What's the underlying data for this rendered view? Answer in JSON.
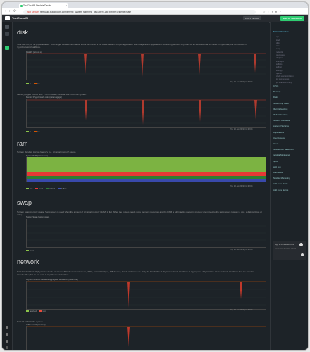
{
  "browser": {
    "tab_title": "TestCloudBI Netdata Dashb...",
    "url_prefix": "Not Secure",
    "url": "fermuskit.blackbloom.com/#menu_system_submenu_disk;after=-180;before=0;theme=slate"
  },
  "header": {
    "brand": "TestCloudBI",
    "last_visited": "Last 5 minutes",
    "sign_in": "SIGN IN TO CLOUD"
  },
  "sections": {
    "disk": {
      "title": "disk",
      "description": "Total disk I/O, for all physical disks. You can get detailed information about each disk at the Disks section and per application Disk usage at the Applications Monitoring section. Physical are all the disks that are listed in /sys/block, but do not exist in /sys/devices/virtual/block.",
      "chart1": {
        "title": "Disk I/O (system.io)",
        "stamp": "Thu, 10 Jun 2021 | 10:42:04",
        "legend": [
          "in",
          "out"
        ]
      },
      "chart2_desc": "Memory paged from/to disk. This is usually the total disk I/O of the system.",
      "chart2": {
        "title": "Memory Paged from/to disk (system.pgpgio)",
        "stamp": "Thu, 10 Jun 2021 | 10:42:04",
        "legend": [
          "in",
          "out"
        ]
      }
    },
    "ram": {
      "title": "ram",
      "description": "System Random Access Memory (i.e. physical memory) usage.",
      "chart": {
        "title": "System RAM (system.ram)",
        "stamp": "Thu, 10 Jun 2021 | 10:42:04",
        "legend": [
          "free",
          "used",
          "cached",
          "buffers"
        ]
      }
    },
    "swap": {
      "title": "swap",
      "description": "System swap memory usage. Swap space is used when the amount of physical memory (RAM) is full. When the system needs more memory resources and the RAM is full, inactive pages in memory are moved to the swap space (usually a disk, a disk partition or a file).",
      "chart": {
        "title": "System Swap (system.swap)",
        "stamp": "Thu, 10 Jun 2021 | 10:42:04",
        "legend": [
          "used"
        ]
      }
    },
    "network": {
      "title": "network",
      "description": "Total bandwidth of all physical network interfaces. This does not include lo, VPNs, network bridges, IFB devices, bond interfaces, etc. Only the bandwidth of physical network interfaces is aggregated. Physical are all the network interfaces that are listed in /proc/net/dev, but do not exist in /sys/devices/virtual/net.",
      "chart": {
        "title": "Physical Network Interfaces Aggregated Bandwidth (system.net)",
        "stamp": "Thu, 10 Jun 2021 | 10:42:04",
        "legend": [
          "received",
          "sent"
        ]
      },
      "chart2_desc": "Total IP traffic in the system.",
      "chart2": {
        "title": "IP Bandwidth (system.ip)"
      }
    }
  },
  "sidebar": {
    "items": [
      {
        "label": "System Overview",
        "level": "top",
        "active": true
      },
      {
        "label": "cpu",
        "level": "sub"
      },
      {
        "label": "load",
        "level": "sub"
      },
      {
        "label": "disk",
        "level": "sub"
      },
      {
        "label": "ram",
        "level": "sub"
      },
      {
        "label": "swap",
        "level": "sub"
      },
      {
        "label": "network",
        "level": "sub"
      },
      {
        "label": "processes",
        "level": "sub"
      },
      {
        "label": "idlejitter",
        "level": "sub"
      },
      {
        "label": "interrupts",
        "level": "sub"
      },
      {
        "label": "softirqs",
        "level": "sub"
      },
      {
        "label": "softnet",
        "level": "sub"
      },
      {
        "label": "entropy",
        "level": "sub"
      },
      {
        "label": "uptime",
        "level": "sub"
      },
      {
        "label": "clock synchronization",
        "level": "sub"
      },
      {
        "label": "ipc semaphores",
        "level": "sub"
      },
      {
        "label": "ipc shared memory",
        "level": "sub"
      },
      {
        "label": "CPUs",
        "level": "top"
      },
      {
        "label": "Memory",
        "level": "top"
      },
      {
        "label": "Disks",
        "level": "top"
      },
      {
        "label": "Networking Stack",
        "level": "top"
      },
      {
        "label": "IPv4 Networking",
        "level": "top"
      },
      {
        "label": "IPv6 Networking",
        "level": "top"
      },
      {
        "label": "Network Interfaces",
        "level": "top"
      },
      {
        "label": "systemd Services",
        "level": "top"
      },
      {
        "label": "Applications",
        "level": "top"
      },
      {
        "label": "User Groups",
        "level": "top"
      },
      {
        "label": "Users",
        "level": "top"
      },
      {
        "label": "Netdata API Bandwidth",
        "level": "top"
      },
      {
        "label": "netdata Monitoring",
        "level": "top"
      },
      {
        "label": "nginx",
        "level": "top"
      },
      {
        "label": "web_log",
        "level": "top"
      },
      {
        "label": "Anomalies",
        "level": "top"
      },
      {
        "label": "Netdata Monitoring",
        "level": "top"
      },
      {
        "label": "Add more charts",
        "level": "top"
      },
      {
        "label": "Add more alarms",
        "level": "top"
      }
    ],
    "cloud_title": "Sign in to Netdata Cloud",
    "cloud_text": "Connect to Netdata Cloud"
  },
  "colors": {
    "bg": "#1d2328",
    "disk_in": "#d35400",
    "ram_free": "#8bc34a",
    "ram_used": "#e53935",
    "ram_cached": "#2e7d32",
    "ram_buffers": "#3f51b5",
    "net_recv": "#e74c3c",
    "accent": "#2ecc71"
  }
}
